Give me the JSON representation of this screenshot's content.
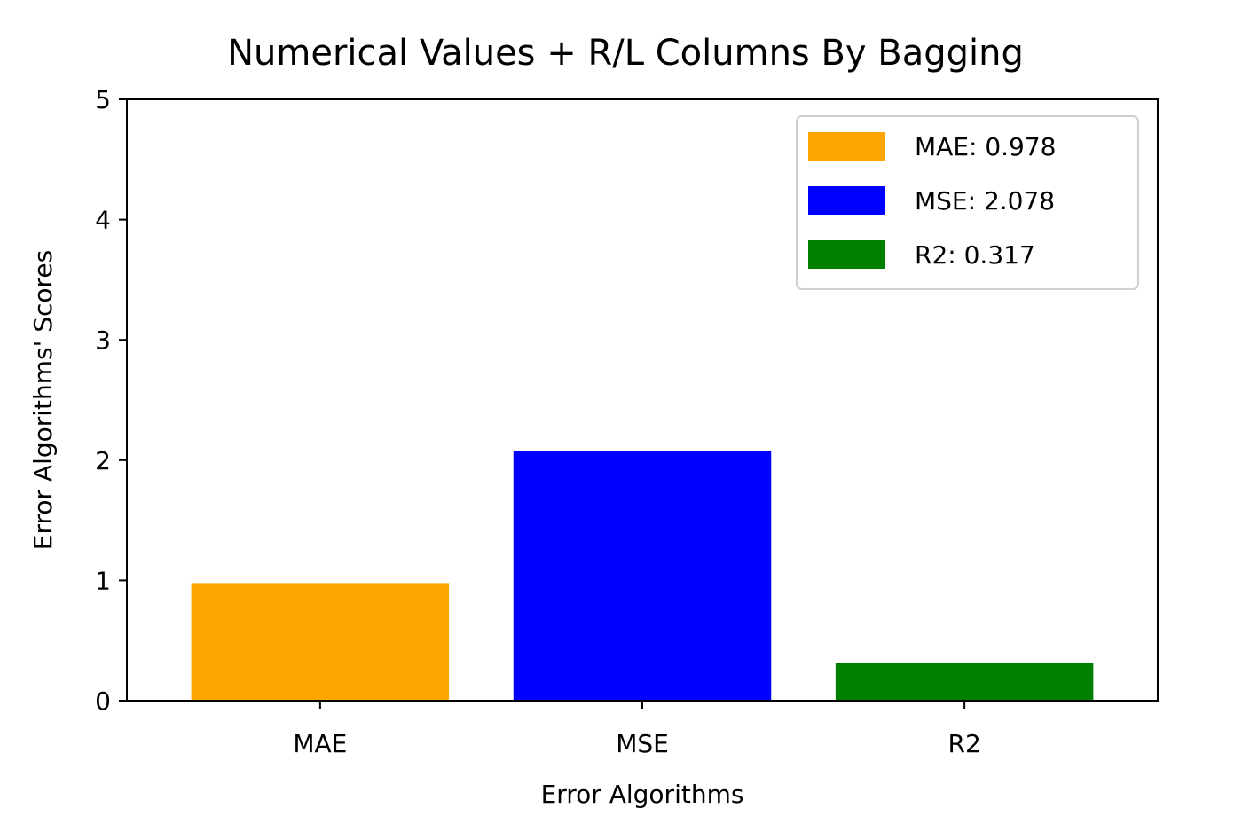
{
  "chart_data": {
    "type": "bar",
    "title": "Numerical Values + R/L Columns By Bagging",
    "xlabel": "Error Algorithms",
    "ylabel": "Error Algorithms' Scores",
    "categories": [
      "MAE",
      "MSE",
      "R2"
    ],
    "values": [
      0.978,
      2.078,
      0.317
    ],
    "colors": [
      "#ffa500",
      "#0000ff",
      "#008000"
    ],
    "ylim": [
      0,
      5
    ],
    "yticks": [
      "0",
      "1",
      "2",
      "3",
      "4",
      "5"
    ],
    "grid": false,
    "legend": {
      "position": "top-right",
      "entries": [
        "MAE: 0.978",
        "MSE: 2.078",
        "R2: 0.317"
      ]
    }
  }
}
